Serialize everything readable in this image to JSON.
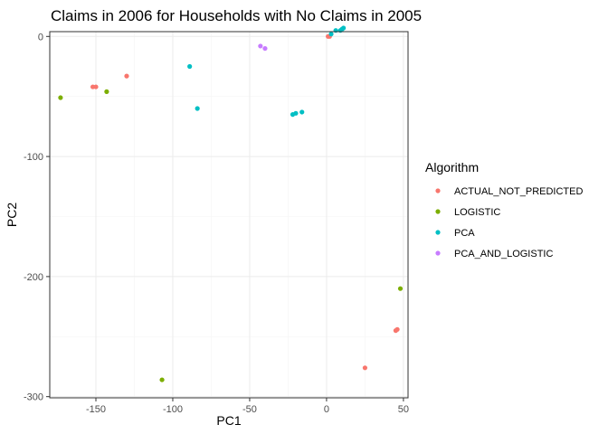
{
  "chart_data": {
    "type": "scatter",
    "title": "Claims in 2006 for Households with No Claims in 2005",
    "xlabel": "PC1",
    "ylabel": "PC2",
    "xlim": [
      -180,
      53
    ],
    "ylim": [
      -301,
      4
    ],
    "x_ticks": [
      -150,
      -100,
      -50,
      0,
      50
    ],
    "y_ticks": [
      0,
      -100,
      -200,
      -300
    ],
    "grid": true,
    "legend": {
      "title": "Algorithm",
      "position": "right"
    },
    "series": [
      {
        "name": "ACTUAL_NOT_PREDICTED",
        "color": "#F8766D",
        "points": [
          {
            "x": -152,
            "y": -42
          },
          {
            "x": -150,
            "y": -42
          },
          {
            "x": -130,
            "y": -33
          },
          {
            "x": 1,
            "y": 0
          },
          {
            "x": 2,
            "y": 0
          },
          {
            "x": 25,
            "y": -276
          },
          {
            "x": 45,
            "y": -245
          },
          {
            "x": 46,
            "y": -244
          }
        ]
      },
      {
        "name": "LOGISTIC",
        "color": "#7CAE00",
        "points": [
          {
            "x": -173,
            "y": -51
          },
          {
            "x": -143,
            "y": -46
          },
          {
            "x": -107,
            "y": -286
          },
          {
            "x": 48,
            "y": -210
          }
        ]
      },
      {
        "name": "PCA",
        "color": "#00BFC4",
        "points": [
          {
            "x": -89,
            "y": -25
          },
          {
            "x": -84,
            "y": -60
          },
          {
            "x": -22,
            "y": -65
          },
          {
            "x": -20,
            "y": -64
          },
          {
            "x": -16,
            "y": -63
          },
          {
            "x": 3,
            "y": 2
          },
          {
            "x": 6,
            "y": 5
          },
          {
            "x": 9,
            "y": 5
          },
          {
            "x": 10,
            "y": 6
          },
          {
            "x": 11,
            "y": 7
          }
        ]
      },
      {
        "name": "PCA_AND_LOGISTIC",
        "color": "#C77CFF",
        "points": [
          {
            "x": -43,
            "y": -8
          },
          {
            "x": -40,
            "y": -10
          }
        ]
      }
    ]
  }
}
